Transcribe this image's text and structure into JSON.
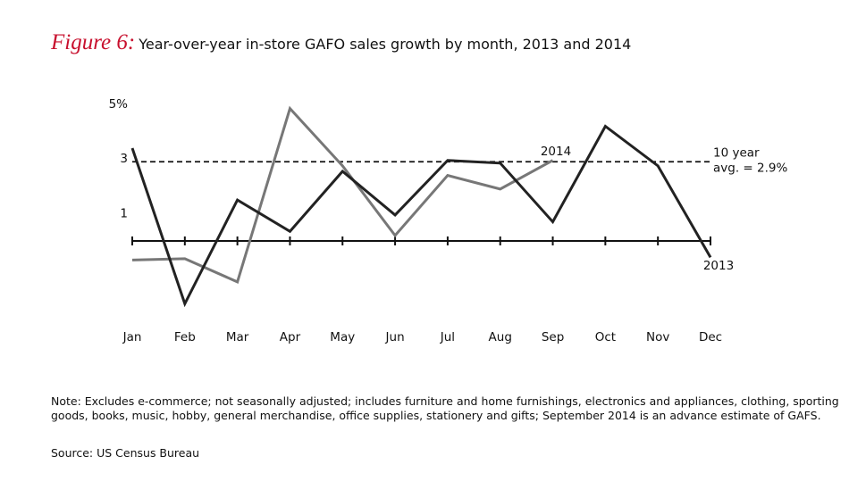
{
  "chart_data": {
    "type": "line",
    "figure_label": "Figure 6:",
    "title": "Year-over-year in-store GAFO sales growth by month, 2013 and 2014",
    "categories": [
      "Jan",
      "Feb",
      "Mar",
      "Apr",
      "May",
      "Jun",
      "Jul",
      "Aug",
      "Sep",
      "Oct",
      "Nov",
      "Dec"
    ],
    "series": [
      {
        "name": "2013",
        "color": "#222222",
        "values": [
          3.4,
          -2.3,
          1.5,
          0.35,
          2.55,
          0.95,
          2.95,
          2.85,
          0.7,
          4.2,
          2.75,
          -0.6
        ]
      },
      {
        "name": "2014",
        "color": "#777777",
        "values": [
          -0.7,
          -0.65,
          -1.5,
          4.85,
          2.75,
          0.2,
          2.4,
          1.9,
          2.95,
          null,
          null,
          null
        ]
      }
    ],
    "ylim": [
      -2.5,
      5
    ],
    "yticks": [
      {
        "value": 5,
        "label": "5%"
      },
      3,
      1
    ],
    "reference_line": {
      "value": 2.9,
      "label": [
        "10 year",
        "avg. = 2.9%"
      ]
    },
    "note": "Note: Excludes e-commerce; not seasonally adjusted; includes furniture and home furnishings, electronics and appliances, clothing, sporting goods, books, music, hobby, general merchandise, office supplies, stationery and gifts; September 2014 is an advance estimate of GAFS.",
    "source": "Source: US Census Bureau"
  }
}
